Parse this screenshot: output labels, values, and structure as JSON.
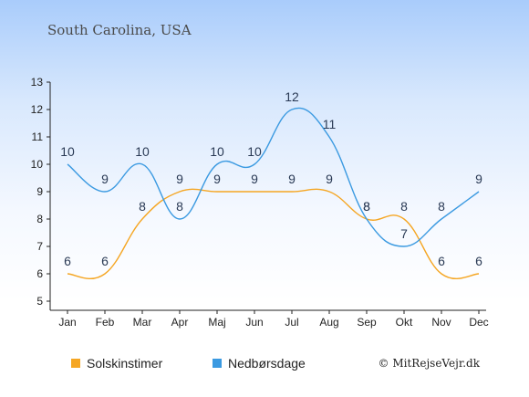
{
  "chart_data": {
    "type": "line",
    "subtitle": "South Carolina, USA",
    "categories": [
      "Jan",
      "Feb",
      "Mar",
      "Apr",
      "Maj",
      "Jun",
      "Jul",
      "Aug",
      "Sep",
      "Okt",
      "Nov",
      "Dec"
    ],
    "ylim": [
      5,
      13
    ],
    "yticks": [
      5,
      6,
      7,
      8,
      9,
      10,
      11,
      12,
      13
    ],
    "series": [
      {
        "name": "Solskinstimer",
        "color": "#f5a623",
        "values": [
          6,
          6,
          8,
          9,
          9,
          9,
          9,
          9,
          8,
          8,
          6,
          6
        ]
      },
      {
        "name": "Nedbørsdage",
        "color": "#3b9ae1",
        "values": [
          10,
          9,
          10,
          8,
          10,
          10,
          12,
          11,
          8,
          7,
          8,
          9
        ]
      }
    ],
    "legend_position": "bottom",
    "grid": false
  },
  "credit": "© MitRejseVejr.dk"
}
